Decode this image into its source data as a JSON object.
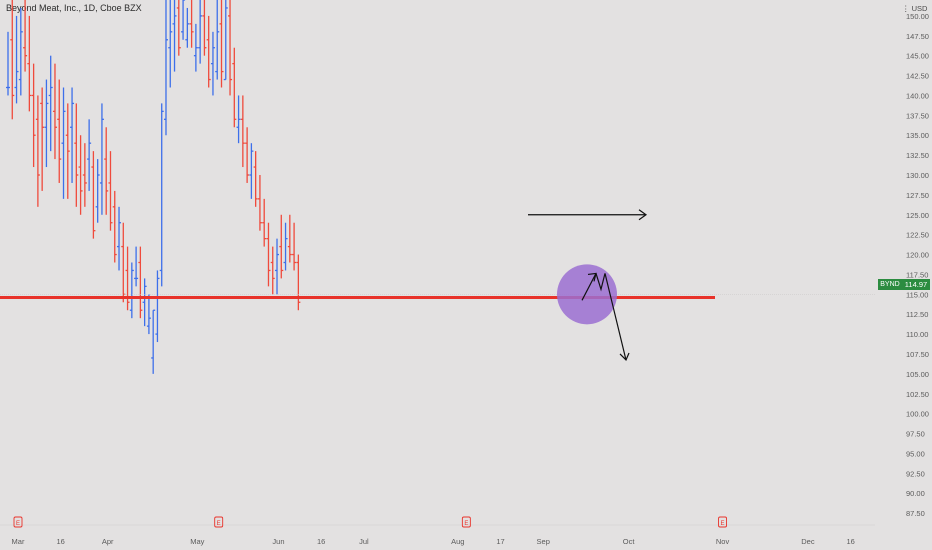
{
  "header": {
    "symbol_name": "Beyond Meat, Inc.",
    "interval": "1D",
    "exchange": "Cboe BZX"
  },
  "currency": {
    "label": "USD"
  },
  "price_badge": {
    "symbol": "BYND",
    "price": "114.97",
    "color": "#2c8c40"
  },
  "earnings_icon_label": "E",
  "colors": {
    "up": "#3d6fea",
    "down": "#ef4a3c",
    "support_line": "#e8322a",
    "circle_fill": "#9b6fd1",
    "annotation": "#111111",
    "background": "#e3e1e1"
  },
  "chart_data": {
    "type": "ohlc",
    "title": "Beyond Meat, Inc., 1D, Cboe BZX",
    "ylim": [
      86,
      152
    ],
    "y_ticks": [
      "87.50",
      "90.00",
      "92.50",
      "95.00",
      "97.50",
      "100.00",
      "102.50",
      "105.00",
      "107.50",
      "110.00",
      "112.50",
      "115.00",
      "117.50",
      "120.00",
      "122.50",
      "125.00",
      "127.50",
      "130.00",
      "132.50",
      "135.00",
      "137.50",
      "140.00",
      "142.50",
      "145.00",
      "147.50",
      "150.00"
    ],
    "x_ticks": [
      {
        "label": "Mar",
        "bar": 0
      },
      {
        "label": "16",
        "bar": 10
      },
      {
        "label": "Apr",
        "bar": 21
      },
      {
        "label": "May",
        "bar": 42
      },
      {
        "label": "Jun",
        "bar": 61
      },
      {
        "label": "16",
        "bar": 71
      },
      {
        "label": "Jul",
        "bar": 81
      },
      {
        "label": "Aug",
        "bar": 103
      },
      {
        "label": "17",
        "bar": 113
      },
      {
        "label": "Sep",
        "bar": 123
      },
      {
        "label": "Oct",
        "bar": 143
      },
      {
        "label": "Nov",
        "bar": 165
      },
      {
        "label": "Dec",
        "bar": 185
      },
      {
        "label": "16",
        "bar": 195
      }
    ],
    "earnings_markers": [
      0,
      47,
      105,
      165
    ],
    "support_level": 114.6,
    "series": [
      {
        "values": [
          [
            141,
            148,
            140,
            141
          ],
          [
            147,
            152,
            137,
            140
          ],
          [
            141,
            150,
            139,
            143
          ],
          [
            142,
            151,
            140,
            148
          ],
          [
            146,
            152,
            143,
            145
          ],
          [
            144,
            150,
            138,
            140
          ],
          [
            140,
            144,
            131,
            135
          ],
          [
            137,
            140,
            126,
            130
          ],
          [
            139,
            141,
            128,
            136
          ],
          [
            136,
            142,
            131,
            139
          ],
          [
            140,
            145,
            133,
            141
          ],
          [
            138,
            144,
            132,
            136
          ],
          [
            137,
            142,
            129,
            132
          ],
          [
            134,
            141,
            127,
            138
          ],
          [
            135,
            139,
            127,
            133
          ],
          [
            136,
            141,
            129,
            139
          ],
          [
            134,
            139,
            126,
            130
          ],
          [
            131,
            135,
            125,
            128
          ],
          [
            130,
            134,
            126,
            129
          ],
          [
            132,
            137,
            128,
            134
          ],
          [
            131,
            133,
            122,
            123
          ],
          [
            126,
            132,
            124,
            130
          ],
          [
            129,
            139,
            125,
            137
          ],
          [
            132,
            136,
            125,
            128
          ],
          [
            129,
            133,
            123,
            124
          ],
          [
            126,
            128,
            119,
            120
          ],
          [
            121,
            126,
            118,
            124
          ],
          [
            121,
            124,
            114,
            115
          ],
          [
            118,
            121,
            113,
            114
          ],
          [
            113,
            119,
            112,
            118
          ],
          [
            117,
            121,
            116,
            117
          ],
          [
            119,
            121,
            112,
            113
          ],
          [
            114,
            117,
            111,
            116
          ],
          [
            111,
            115,
            110,
            112
          ],
          [
            107,
            113,
            105,
            113
          ],
          [
            110,
            118,
            109,
            117
          ],
          [
            118,
            139,
            116,
            138
          ],
          [
            137,
            152,
            135,
            147
          ],
          [
            146,
            152,
            141,
            148
          ],
          [
            149,
            152,
            143,
            150
          ],
          [
            151,
            152,
            145,
            146
          ],
          [
            148,
            152,
            147,
            152
          ],
          [
            147,
            151,
            146,
            149
          ],
          [
            149,
            152,
            146,
            148
          ],
          [
            145,
            149,
            143,
            146
          ],
          [
            146,
            152,
            144,
            150
          ],
          [
            150,
            152,
            145,
            146
          ],
          [
            147,
            150,
            141,
            142
          ],
          [
            144,
            148,
            140,
            146
          ],
          [
            143,
            152,
            142,
            148
          ],
          [
            149,
            152,
            141,
            143
          ],
          [
            142,
            152,
            142,
            151
          ],
          [
            150,
            152,
            140,
            142
          ],
          [
            144,
            146,
            136,
            137
          ],
          [
            136,
            140,
            134,
            137
          ],
          [
            137,
            140,
            131,
            134
          ],
          [
            134,
            136,
            129,
            130
          ],
          [
            130,
            134,
            127,
            133
          ],
          [
            131,
            133,
            126,
            127
          ],
          [
            127,
            130,
            123,
            124
          ],
          [
            124,
            127,
            121,
            122
          ],
          [
            122,
            124,
            116,
            118
          ],
          [
            119,
            121,
            115,
            117
          ],
          [
            118,
            122,
            115,
            120
          ],
          [
            121,
            125,
            117,
            118
          ],
          [
            119,
            124,
            118,
            122
          ],
          [
            121,
            125,
            119,
            120
          ],
          [
            120,
            124,
            118,
            119
          ],
          [
            119,
            120,
            113,
            114
          ]
        ]
      }
    ],
    "annotations": {
      "horizontal_arrow_level": 125,
      "circle_center_level": 115,
      "up_arrow_level": 117,
      "down_arrow_target_level": 107
    }
  }
}
